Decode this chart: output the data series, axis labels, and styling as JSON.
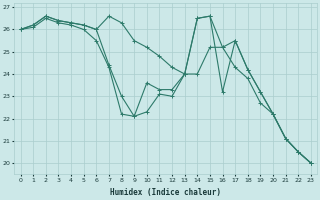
{
  "xlabel": "Humidex (Indice chaleur)",
  "xlim": [
    -0.5,
    23.5
  ],
  "ylim": [
    19.5,
    27.2
  ],
  "yticks": [
    20,
    21,
    22,
    23,
    24,
    25,
    26,
    27
  ],
  "xticks": [
    0,
    1,
    2,
    3,
    4,
    5,
    6,
    7,
    8,
    9,
    10,
    11,
    12,
    13,
    14,
    15,
    16,
    17,
    18,
    19,
    20,
    21,
    22,
    23
  ],
  "background_color": "#cce8e8",
  "grid_color": "#aacece",
  "line_color": "#2d7a6a",
  "line1_x": [
    0,
    1,
    2,
    3,
    4,
    5,
    6,
    7,
    8,
    9,
    10,
    11,
    12,
    13,
    14,
    15,
    16,
    17,
    18,
    19,
    20,
    21,
    22,
    23
  ],
  "line1_y": [
    26.0,
    26.2,
    26.6,
    26.4,
    26.3,
    26.2,
    26.0,
    26.6,
    26.3,
    25.5,
    25.2,
    24.8,
    24.3,
    24.0,
    26.5,
    26.6,
    25.2,
    25.5,
    24.2,
    23.2,
    22.2,
    21.1,
    20.5,
    20.0
  ],
  "line2_x": [
    0,
    1,
    2,
    3,
    4,
    5,
    6,
    7,
    8,
    9,
    10,
    11,
    12,
    13,
    14,
    15,
    16,
    17,
    18,
    19,
    20,
    21,
    22,
    23
  ],
  "line2_y": [
    26.0,
    26.2,
    26.6,
    26.4,
    26.3,
    26.2,
    26.0,
    24.4,
    23.0,
    22.1,
    23.6,
    23.3,
    23.3,
    24.0,
    26.5,
    26.6,
    23.2,
    25.5,
    24.2,
    23.2,
    22.2,
    21.1,
    20.5,
    20.0
  ],
  "line3_x": [
    0,
    1,
    2,
    3,
    4,
    5,
    6,
    7,
    8,
    9,
    10,
    11,
    12,
    13,
    14,
    15,
    16,
    17,
    18,
    19,
    20,
    21,
    22,
    23
  ],
  "line3_y": [
    26.0,
    26.1,
    26.5,
    26.3,
    26.2,
    26.0,
    25.5,
    24.3,
    22.2,
    22.1,
    22.3,
    23.1,
    23.0,
    24.0,
    24.0,
    25.2,
    25.2,
    24.3,
    23.8,
    22.7,
    22.2,
    21.1,
    20.5,
    20.0
  ]
}
